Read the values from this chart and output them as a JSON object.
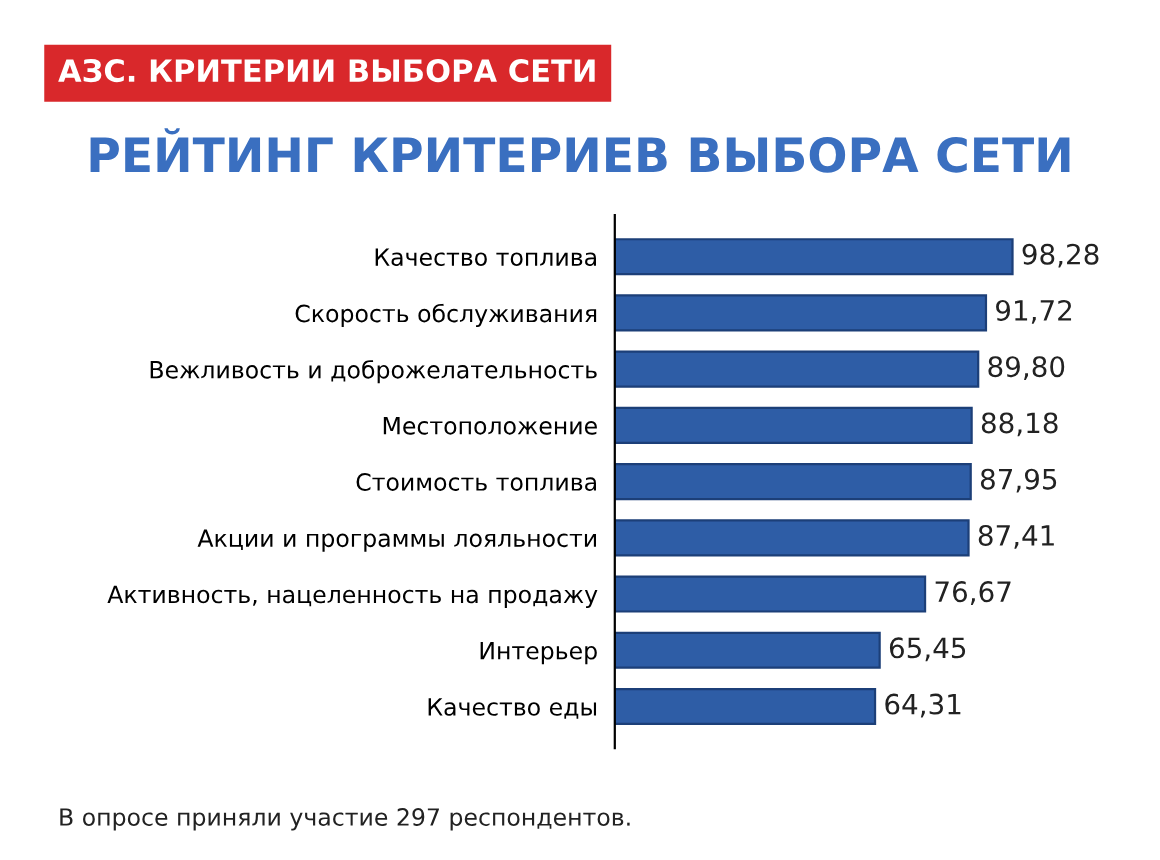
{
  "chart_data": {
    "type": "bar",
    "orientation": "horizontal",
    "subtitle": "АЗС. КРИТЕРИИ ВЫБОРА СЕТИ",
    "title": "РЕЙТИНГ КРИТЕРИЕВ ВЫБОРА СЕТИ",
    "categories": [
      "Качество топлива",
      "Скорость обслуживания",
      "Вежливость и доброжелательность",
      "Местоположение",
      "Стоимость топлива",
      "Акции и программы лояльности",
      "Активность, нацеленность на продажу",
      "Интерьер",
      "Качество еды"
    ],
    "values": [
      98.28,
      91.72,
      89.8,
      88.18,
      87.95,
      87.41,
      76.67,
      65.45,
      64.31
    ],
    "value_labels": [
      "98,28",
      "91,72",
      "89,80",
      "88,18",
      "87,95",
      "87,41",
      "76,67",
      "65,45",
      "64,31"
    ],
    "color": "#2e5da6",
    "grid": false,
    "legend": false,
    "annotations": [
      "В опросе приняли участие 297 респондентов."
    ]
  }
}
